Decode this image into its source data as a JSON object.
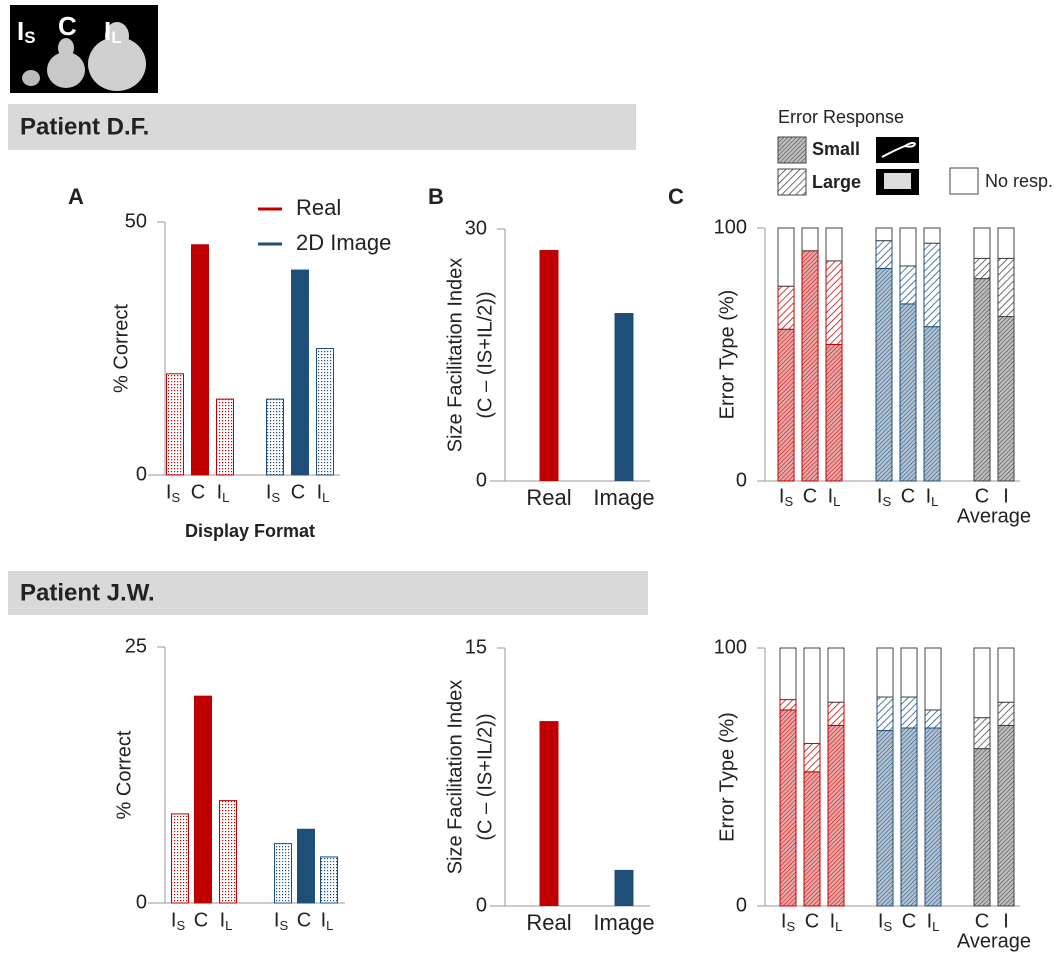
{
  "image_labels": [
    "IS",
    "C",
    "IL"
  ],
  "panels": [
    "Patient D.F.",
    "Patient J.W."
  ],
  "chart_data": [
    {
      "type": "bar",
      "panel": "A",
      "categories": [
        "IS",
        "C",
        "IL"
      ],
      "series": [
        {
          "name": "Real",
          "color": "#c00000",
          "values": [
            20,
            45.5,
            15
          ]
        },
        {
          "name": "2D Image",
          "color": "#1f4e79",
          "values": [
            15,
            40.5,
            25
          ]
        }
      ],
      "ylim": [
        0,
        50
      ],
      "yticks": [
        0,
        50
      ],
      "ylabel": "% Correct",
      "xlabel": "Display Format"
    },
    {
      "type": "bar",
      "panel": "B",
      "categories": [
        "Real",
        "Image"
      ],
      "values": [
        27.5,
        20
      ],
      "colors": [
        "#c00000",
        "#1f4e79"
      ],
      "ylim": [
        0,
        30
      ],
      "yticks": [
        0,
        30
      ],
      "ylabel": [
        "Size Facilitation Index",
        "(C – (IS+IL/2))"
      ]
    },
    {
      "type": "stacked_bar",
      "panel": "C",
      "categories": [
        "IS",
        "C",
        "IL",
        "IS",
        "C",
        "IL",
        "C",
        "I"
      ],
      "group_label": "Average",
      "colors": [
        "#c00000",
        "#c00000",
        "#c00000",
        "#1f4e79",
        "#1f4e79",
        "#1f4e79",
        "#404040",
        "#404040"
      ],
      "legend_title": "Error Response",
      "series": [
        {
          "name": "Small",
          "values": [
            60,
            91,
            54,
            84,
            70,
            61,
            80,
            65
          ]
        },
        {
          "name": "Large",
          "values": [
            17,
            0,
            33,
            11,
            15,
            33,
            8,
            23
          ]
        },
        {
          "name": "No resp.",
          "values": [
            23,
            9,
            13,
            5,
            15,
            6,
            12,
            12
          ]
        }
      ],
      "ylim": [
        0,
        100
      ],
      "yticks": [
        0,
        100
      ],
      "ylabel": "Error Type (%)"
    },
    {
      "type": "bar",
      "categories": [
        "IS",
        "C",
        "IL"
      ],
      "series": [
        {
          "color": "#c00000",
          "values": [
            8.7,
            20.2,
            10
          ]
        },
        {
          "color": "#1f4e79",
          "values": [
            5.8,
            7.2,
            4.5
          ]
        }
      ],
      "ylim": [
        0,
        25
      ],
      "yticks": [
        0,
        25
      ],
      "ylabel": "% Correct"
    },
    {
      "type": "bar",
      "categories": [
        "Real",
        "Image"
      ],
      "values": [
        10.75,
        2.1
      ],
      "colors": [
        "#c00000",
        "#1f4e79"
      ],
      "ylim": [
        0,
        15
      ],
      "yticks": [
        0,
        15
      ],
      "ylabel": [
        "Size Facilitation Index",
        "(C – (IS+IL/2))"
      ]
    },
    {
      "type": "stacked_bar",
      "categories": [
        "IS",
        "C",
        "IL",
        "IS",
        "C",
        "IL",
        "C",
        "I"
      ],
      "group_label": "Average",
      "colors": [
        "#c00000",
        "#c00000",
        "#c00000",
        "#1f4e79",
        "#1f4e79",
        "#1f4e79",
        "#404040",
        "#404040"
      ],
      "series": [
        {
          "values": [
            76,
            52,
            70,
            68,
            69,
            69,
            61,
            70
          ]
        },
        {
          "values": [
            4,
            11,
            9,
            13,
            12,
            7,
            12,
            9
          ]
        },
        {
          "values": [
            20,
            37,
            21,
            19,
            19,
            24,
            27,
            21
          ]
        }
      ],
      "ylim": [
        0,
        100
      ],
      "yticks": [
        0,
        100
      ],
      "ylabel": "Error Type (%)"
    }
  ]
}
